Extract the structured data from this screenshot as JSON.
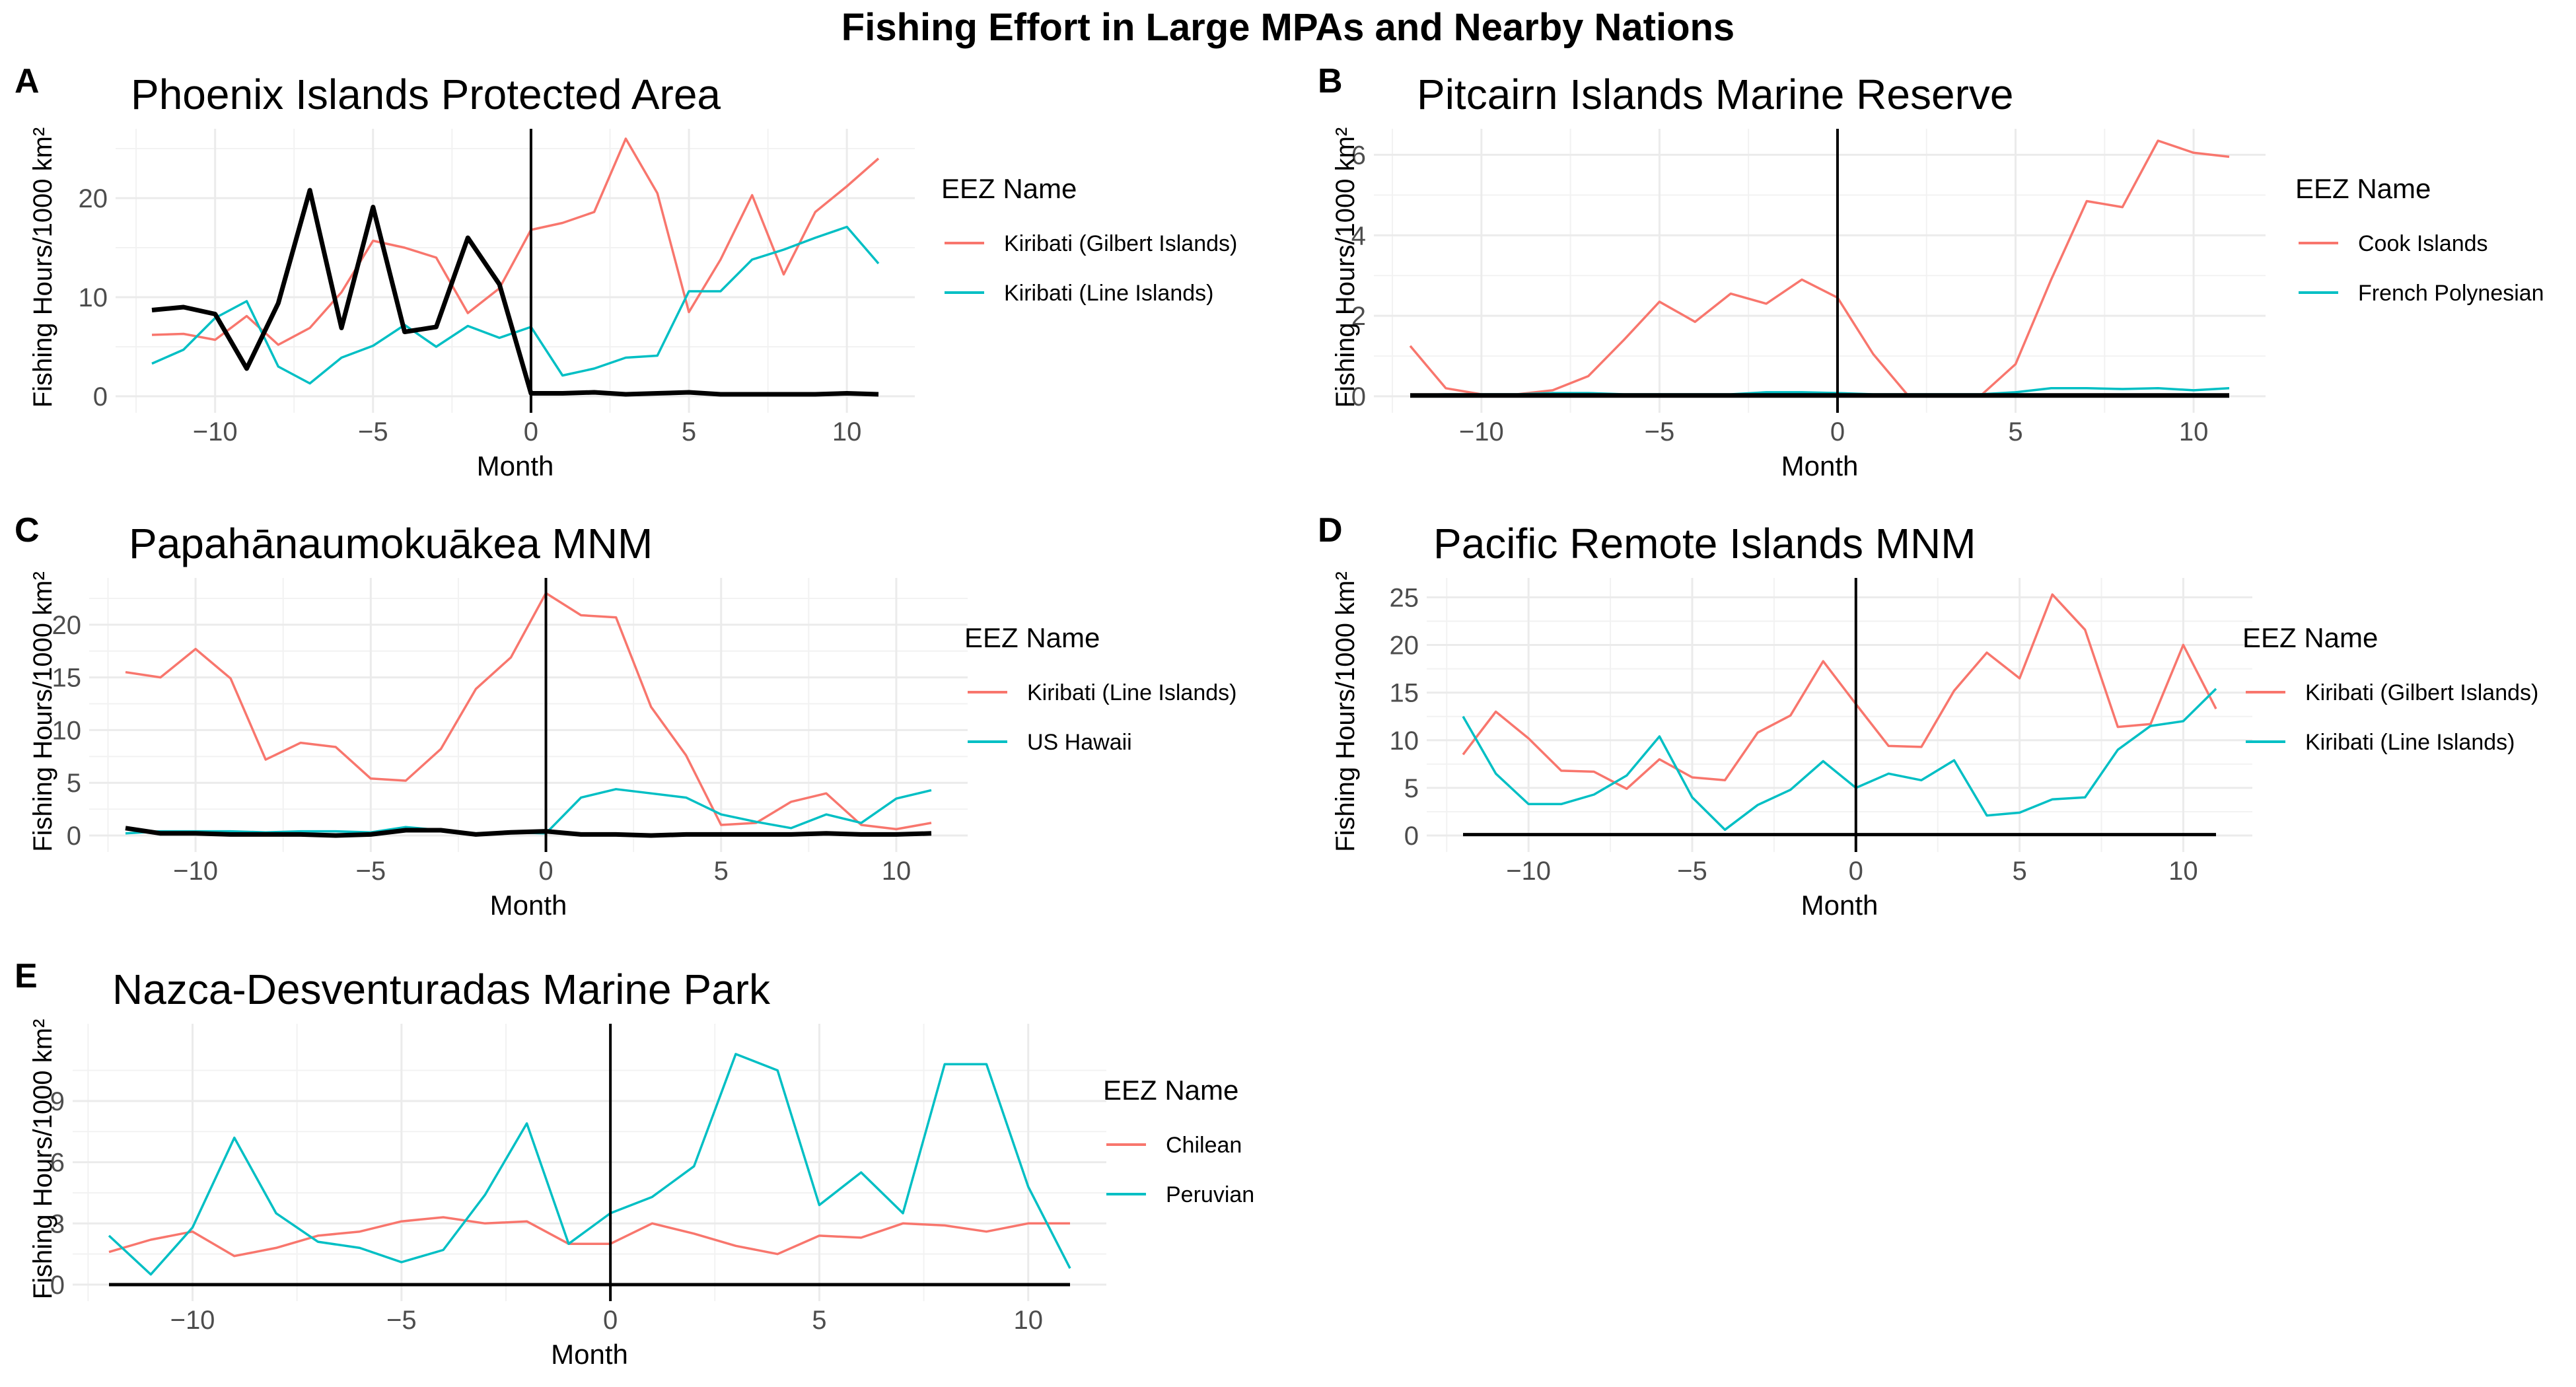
{
  "figure_title": "Fishing Effort in Large MPAs and Nearby Nations",
  "colors": {
    "red": "#F8766D",
    "teal": "#00BFC4",
    "black": "#000000",
    "grid": "#EBEBEB"
  },
  "chart_data": [
    {
      "panel": "A",
      "type": "line",
      "title": "Phoenix Islands Protected Area",
      "xlabel": "Month",
      "ylabel": "Fishing Hours/1000 km²",
      "xlim": [
        -12,
        11
      ],
      "ylim": [
        0,
        26
      ],
      "xticks": [
        -10,
        -5,
        0,
        5,
        10
      ],
      "yticks": [
        0,
        10,
        20
      ],
      "legend_title": "EEZ Name",
      "legend_position": "right",
      "x": [
        -12,
        -11,
        -10,
        -9,
        -8,
        -7,
        -6,
        -5,
        -4,
        -3,
        -2,
        -1,
        0,
        1,
        2,
        3,
        4,
        5,
        6,
        7,
        8,
        9,
        10,
        11
      ],
      "series": [
        {
          "name": "Kiribati (Gilbert Islands)",
          "color": "red",
          "values": [
            6.2,
            6.3,
            5.7,
            8.1,
            5.2,
            6.9,
            10.5,
            15.7,
            15.0,
            14.0,
            8.4,
            10.9,
            16.8,
            17.5,
            18.6,
            26.0,
            20.5,
            8.5,
            13.8,
            20.3,
            12.3,
            18.6,
            21.2,
            24.0
          ]
        },
        {
          "name": "Kiribati (Line Islands)",
          "color": "teal",
          "values": [
            3.3,
            4.7,
            7.9,
            9.6,
            3.0,
            1.3,
            3.9,
            5.1,
            7.2,
            5.0,
            7.1,
            5.9,
            7.0,
            2.1,
            2.8,
            3.9,
            4.1,
            10.6,
            10.6,
            13.8,
            14.8,
            16.0,
            17.1,
            13.4
          ]
        },
        {
          "color": "black",
          "thick": true,
          "values": [
            8.7,
            9.0,
            8.3,
            2.8,
            9.4,
            20.8,
            6.9,
            19.1,
            6.5,
            7.0,
            16.0,
            11.3,
            0.3,
            0.3,
            0.4,
            0.2,
            0.3,
            0.4,
            0.2,
            0.2,
            0.2,
            0.2,
            0.3,
            0.2
          ]
        }
      ]
    },
    {
      "panel": "B",
      "type": "line",
      "title": "Pitcairn Islands Marine Reserve",
      "xlabel": "Month",
      "ylabel": "Fishing Hours/1000 km²",
      "xlim": [
        -12,
        11
      ],
      "ylim": [
        0,
        6.4
      ],
      "xticks": [
        -10,
        -5,
        0,
        5,
        10
      ],
      "yticks": [
        0,
        2,
        4,
        6
      ],
      "legend_title": "EEZ Name",
      "legend_position": "right",
      "x": [
        -12,
        -11,
        -10,
        -9,
        -8,
        -7,
        -6,
        -5,
        -4,
        -3,
        -2,
        -1,
        0,
        1,
        2,
        3,
        4,
        5,
        6,
        7,
        8,
        9,
        10,
        11
      ],
      "series": [
        {
          "name": "Cook Islands",
          "color": "red",
          "values": [
            1.25,
            0.2,
            0.05,
            0.05,
            0.15,
            0.5,
            1.4,
            2.35,
            1.85,
            2.55,
            2.3,
            2.9,
            2.45,
            1.05,
            0.0,
            0.0,
            0.0,
            0.8,
            2.9,
            4.85,
            4.7,
            6.35,
            6.05,
            5.95
          ]
        },
        {
          "name": "French Polynesian",
          "color": "teal",
          "values": [
            0.03,
            0.05,
            0.05,
            0.05,
            0.08,
            0.08,
            0.05,
            0.05,
            0.05,
            0.05,
            0.1,
            0.1,
            0.08,
            0.05,
            0.05,
            0.05,
            0.05,
            0.1,
            0.2,
            0.2,
            0.18,
            0.2,
            0.15,
            0.2
          ]
        },
        {
          "color": "black",
          "thick": true,
          "values": [
            0.02,
            0.02,
            0.02,
            0.02,
            0.02,
            0.02,
            0.02,
            0.02,
            0.02,
            0.02,
            0.02,
            0.02,
            0.02,
            0.02,
            0.02,
            0.02,
            0.02,
            0.02,
            0.02,
            0.02,
            0.02,
            0.02,
            0.02,
            0.02
          ]
        }
      ]
    },
    {
      "panel": "C",
      "type": "line",
      "title": "Papahānaumokuākea MNM",
      "xlabel": "Month",
      "ylabel": "Fishing Hours/1000 km²",
      "xlim": [
        -12,
        11
      ],
      "ylim": [
        0,
        23.5
      ],
      "xticks": [
        -10,
        -5,
        0,
        5,
        10
      ],
      "yticks": [
        0,
        5,
        10,
        15,
        20
      ],
      "legend_title": "EEZ Name",
      "legend_position": "right",
      "x": [
        -12,
        -11,
        -10,
        -9,
        -8,
        -7,
        -6,
        -5,
        -4,
        -3,
        -2,
        -1,
        0,
        1,
        2,
        3,
        4,
        5,
        6,
        7,
        8,
        9,
        10,
        11
      ],
      "series": [
        {
          "name": "Kiribati (Line Islands)",
          "color": "red",
          "values": [
            15.5,
            15.0,
            17.7,
            14.9,
            7.2,
            8.8,
            8.4,
            5.4,
            5.2,
            8.2,
            13.9,
            16.9,
            23.0,
            20.9,
            20.7,
            12.2,
            7.6,
            1.0,
            1.2,
            3.2,
            4.0,
            1.0,
            0.6,
            1.2
          ]
        },
        {
          "name": "US Hawaii",
          "color": "teal",
          "values": [
            0.2,
            0.4,
            0.4,
            0.4,
            0.3,
            0.4,
            0.4,
            0.3,
            0.8,
            0.5,
            0.2,
            0.3,
            0.2,
            3.6,
            4.4,
            4.0,
            3.6,
            2.0,
            1.3,
            0.7,
            2.0,
            1.2,
            3.5,
            4.3
          ]
        },
        {
          "color": "black",
          "thick": true,
          "values": [
            0.7,
            0.2,
            0.2,
            0.1,
            0.1,
            0.1,
            0.0,
            0.1,
            0.5,
            0.5,
            0.1,
            0.3,
            0.4,
            0.1,
            0.1,
            0.0,
            0.1,
            0.1,
            0.1,
            0.1,
            0.2,
            0.1,
            0.1,
            0.2
          ]
        }
      ]
    },
    {
      "panel": "D",
      "type": "line",
      "title": "Pacific Remote Islands MNM",
      "xlabel": "Month",
      "ylabel": "Fishing Hours/1000 km²",
      "xlim": [
        -12,
        11
      ],
      "ylim": [
        0,
        26
      ],
      "xticks": [
        -10,
        -5,
        0,
        5,
        10
      ],
      "yticks": [
        0,
        5,
        10,
        15,
        20,
        25
      ],
      "legend_title": "EEZ Name",
      "legend_position": "right",
      "x": [
        -12,
        -11,
        -10,
        -9,
        -8,
        -7,
        -6,
        -5,
        -4,
        -3,
        -2,
        -1,
        0,
        1,
        2,
        3,
        4,
        5,
        6,
        7,
        8,
        9,
        10,
        11
      ],
      "series": [
        {
          "name": "Kiribati (Gilbert Islands)",
          "color": "red",
          "values": [
            8.5,
            13.0,
            10.2,
            6.8,
            6.7,
            4.9,
            8.0,
            6.1,
            5.8,
            10.8,
            12.6,
            18.3,
            13.8,
            9.4,
            9.3,
            15.2,
            19.2,
            16.5,
            25.3,
            21.6,
            11.4,
            11.7,
            20.0,
            13.3
          ]
        },
        {
          "name": "Kiribati (Line Islands)",
          "color": "teal",
          "values": [
            12.5,
            6.5,
            3.3,
            3.3,
            4.3,
            6.3,
            10.4,
            4.0,
            0.6,
            3.2,
            4.8,
            7.8,
            5.0,
            6.5,
            5.8,
            7.9,
            2.1,
            2.4,
            3.8,
            4.0,
            9.0,
            11.5,
            12.0,
            15.4
          ]
        },
        {
          "color": "black",
          "thick": false,
          "values": [
            0.1,
            0.1,
            0.1,
            0.1,
            0.1,
            0.1,
            0.1,
            0.1,
            0.1,
            0.1,
            0.1,
            0.1,
            0.1,
            0.1,
            0.1,
            0.1,
            0.1,
            0.1,
            0.1,
            0.1,
            0.1,
            0.1,
            0.1,
            0.1
          ]
        }
      ]
    },
    {
      "panel": "E",
      "type": "line",
      "title": "Nazca-Desventuradas Marine Park",
      "xlabel": "Month",
      "ylabel": "Fishing Hours/1000 km²",
      "xlim": [
        -12,
        11
      ],
      "ylim": [
        0,
        12.3
      ],
      "xticks": [
        -10,
        -5,
        0,
        5,
        10
      ],
      "yticks": [
        0,
        3,
        6,
        9
      ],
      "legend_title": "EEZ Name",
      "legend_position": "right",
      "x": [
        -12,
        -11,
        -10,
        -9,
        -8,
        -7,
        -6,
        -5,
        -4,
        -3,
        -2,
        -1,
        0,
        1,
        2,
        3,
        4,
        5,
        6,
        7,
        8,
        9,
        10,
        11
      ],
      "series": [
        {
          "name": "Chilean",
          "color": "red",
          "values": [
            1.6,
            2.2,
            2.6,
            1.4,
            1.8,
            2.4,
            2.6,
            3.1,
            3.3,
            3.0,
            3.1,
            2.0,
            2.0,
            3.0,
            2.5,
            1.9,
            1.5,
            2.4,
            2.3,
            3.0,
            2.9,
            2.6,
            3.0,
            3.0
          ]
        },
        {
          "name": "Peruvian",
          "color": "teal",
          "values": [
            2.4,
            0.5,
            2.8,
            7.2,
            3.5,
            2.1,
            1.8,
            1.1,
            1.7,
            4.4,
            7.9,
            2.0,
            3.5,
            4.3,
            5.8,
            11.3,
            10.5,
            3.9,
            5.5,
            3.5,
            10.8,
            10.8,
            4.8,
            0.8
          ]
        },
        {
          "color": "black",
          "thick": false,
          "values": [
            0.0,
            0.0,
            0.0,
            0.0,
            0.0,
            0.0,
            0.0,
            0.0,
            0.0,
            0.0,
            0.0,
            0.0,
            0.0,
            0.0,
            0.0,
            0.0,
            0.0,
            0.0,
            0.0,
            0.0,
            0.0,
            0.0,
            0.0,
            0.0
          ]
        }
      ]
    }
  ]
}
